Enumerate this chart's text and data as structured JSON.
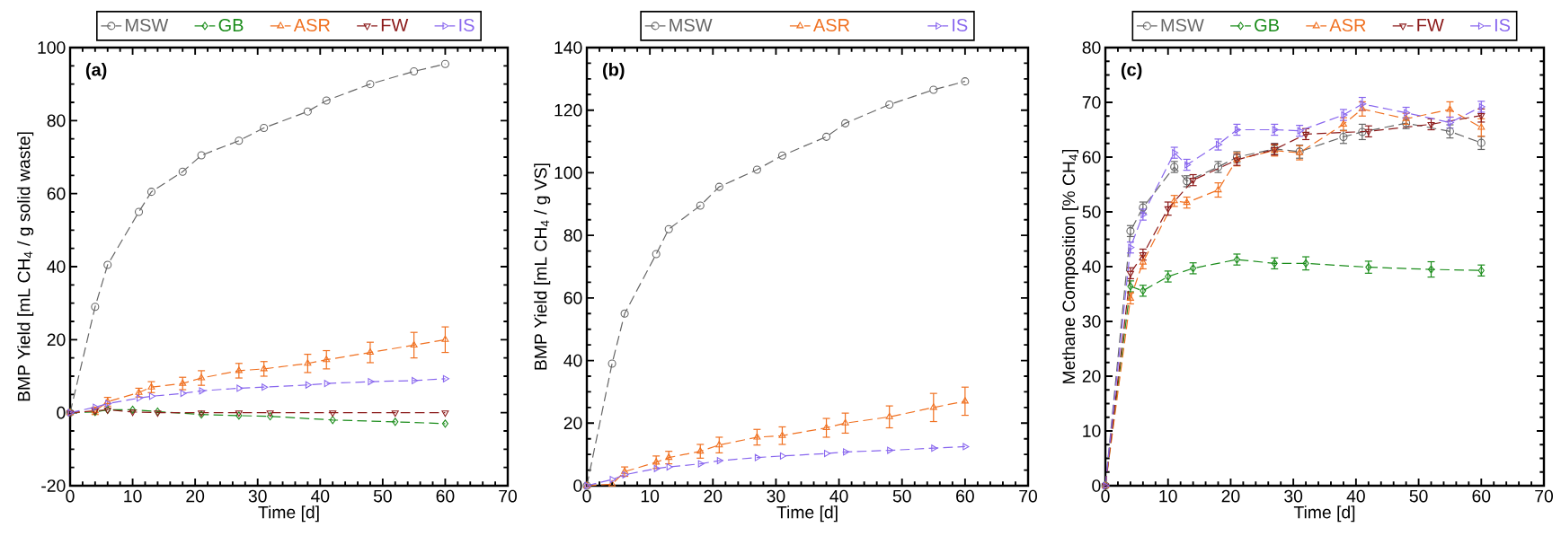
{
  "chart_data": [
    {
      "type": "line",
      "xlabel": "Time [d]",
      "ylabel": "BMP Yield [mL CH$_{4}$ / g solid waste]",
      "annotations": [
        "(a)"
      ],
      "xlim": [
        0,
        70
      ],
      "ylim": [
        -20,
        100
      ],
      "xticks": [
        0,
        10,
        20,
        30,
        40,
        50,
        60,
        70
      ],
      "yticks": [
        -20,
        0,
        20,
        40,
        60,
        80,
        100
      ],
      "legend": "top",
      "line_style": "dashed",
      "series": [
        {
          "name": "MSW",
          "color": "#666666",
          "marker": "circle",
          "x": [
            0,
            4,
            6,
            11,
            13,
            18,
            21,
            27,
            31,
            38,
            41,
            48,
            55,
            60
          ],
          "values": [
            0,
            29,
            40.5,
            55,
            60.5,
            66,
            70.5,
            74.5,
            78,
            82.5,
            85.5,
            90,
            93.5,
            95.5
          ]
        },
        {
          "name": "GB",
          "color": "#1a8c1a",
          "marker": "diamond",
          "x": [
            0,
            4,
            6,
            10,
            14,
            21,
            27,
            32,
            42,
            52,
            60
          ],
          "values": [
            0,
            0.2,
            0.8,
            0.8,
            0.3,
            -0.5,
            -0.8,
            -1,
            -2,
            -2.5,
            -3
          ]
        },
        {
          "name": "ASR",
          "color": "#f07020",
          "marker": "triangle",
          "x": [
            0,
            4,
            6,
            11,
            13,
            18,
            21,
            27,
            31,
            38,
            41,
            48,
            55,
            60
          ],
          "values": [
            0,
            0.5,
            3,
            5.5,
            7,
            8,
            9.5,
            11.5,
            12,
            13.5,
            14.5,
            16.5,
            18.5,
            20
          ],
          "errors": [
            null,
            1,
            1.2,
            1.2,
            1.5,
            1.7,
            2,
            2,
            2,
            2.5,
            2.5,
            2.8,
            3.5,
            3.5
          ]
        },
        {
          "name": "FW",
          "color": "#8b1a1a",
          "marker": "triangle-down",
          "x": [
            0,
            4,
            6,
            10,
            14,
            21,
            27,
            32,
            42,
            52,
            60
          ],
          "values": [
            0,
            0.5,
            0.8,
            0.2,
            0,
            0,
            0,
            0,
            0,
            0,
            0
          ]
        },
        {
          "name": "IS",
          "color": "#8866ee",
          "marker": "triangle-right",
          "x": [
            0,
            4,
            6,
            11,
            13,
            18,
            21,
            27,
            31,
            38,
            41,
            48,
            55,
            60
          ],
          "values": [
            0,
            1.5,
            2.5,
            4,
            4.5,
            5.3,
            6,
            6.7,
            7,
            7.6,
            8,
            8.5,
            8.8,
            9.3
          ]
        }
      ]
    },
    {
      "type": "line",
      "xlabel": "Time [d]",
      "ylabel": "BMP Yield [mL CH$_{4}$ / g VS]",
      "annotations": [
        "(b)"
      ],
      "xlim": [
        0,
        70
      ],
      "ylim": [
        0,
        140
      ],
      "xticks": [
        0,
        10,
        20,
        30,
        40,
        50,
        60,
        70
      ],
      "yticks": [
        0,
        20,
        40,
        60,
        80,
        100,
        120,
        140
      ],
      "legend": "top",
      "line_style": "dashed",
      "series": [
        {
          "name": "MSW",
          "color": "#666666",
          "marker": "circle",
          "x": [
            0,
            4,
            6,
            11,
            13,
            18,
            21,
            27,
            31,
            38,
            41,
            48,
            55,
            60
          ],
          "values": [
            0,
            39,
            55,
            74,
            82,
            89.5,
            95.5,
            101,
            105.5,
            111.5,
            115.8,
            121.8,
            126.5,
            129.2
          ]
        },
        {
          "name": "ASR",
          "color": "#f07020",
          "marker": "triangle",
          "x": [
            0,
            4,
            6,
            11,
            13,
            18,
            21,
            27,
            31,
            38,
            41,
            48,
            55,
            60
          ],
          "values": [
            0,
            0.5,
            4.5,
            7.5,
            9,
            11,
            13,
            15.5,
            16,
            18.5,
            20,
            22,
            25,
            27
          ],
          "errors": [
            null,
            null,
            1.5,
            2,
            2,
            2.2,
            2.5,
            2.5,
            2.8,
            3,
            3.2,
            3.5,
            4.5,
            4.5
          ]
        },
        {
          "name": "IS",
          "color": "#8866ee",
          "marker": "triangle-right",
          "x": [
            0,
            4,
            6,
            11,
            13,
            18,
            21,
            27,
            31,
            38,
            41,
            48,
            55,
            60
          ],
          "values": [
            0,
            2,
            3.5,
            5.5,
            6,
            7,
            8,
            9,
            9.5,
            10.3,
            10.8,
            11.3,
            12,
            12.5
          ]
        }
      ]
    },
    {
      "type": "line",
      "xlabel": "Time [d]",
      "ylabel": "Methane Composition [% CH$_{4}$]",
      "annotations": [
        "(c)"
      ],
      "xlim": [
        0,
        70
      ],
      "ylim": [
        0,
        80
      ],
      "xticks": [
        0,
        10,
        20,
        30,
        40,
        50,
        60,
        70
      ],
      "yticks": [
        0,
        10,
        20,
        30,
        40,
        50,
        60,
        70,
        80
      ],
      "legend": "top",
      "line_style": "dashed",
      "series": [
        {
          "name": "MSW",
          "color": "#666666",
          "marker": "circle",
          "x": [
            0,
            4,
            6,
            11,
            13,
            18,
            21,
            27,
            31,
            38,
            41,
            48,
            55,
            60
          ],
          "values": [
            0,
            46.5,
            50.8,
            58.2,
            55.6,
            58.2,
            60,
            61.5,
            61,
            63.7,
            64.6,
            66.2,
            64.7,
            62.6
          ],
          "errors": [
            null,
            1,
            1,
            1,
            1,
            1,
            1,
            1,
            1.2,
            1.2,
            1.4,
            1,
            1.2,
            1.2
          ]
        },
        {
          "name": "GB",
          "color": "#1a8c1a",
          "marker": "diamond",
          "x": [
            0,
            4,
            6,
            10,
            14,
            21,
            27,
            32,
            42,
            52,
            60
          ],
          "values": [
            0,
            36.4,
            35.6,
            38.2,
            39.7,
            41.3,
            40.6,
            40.6,
            39.9,
            39.5,
            39.3
          ],
          "errors": [
            null,
            1,
            1,
            1,
            1,
            1,
            1,
            1.2,
            1.1,
            1.4,
            1
          ]
        },
        {
          "name": "ASR",
          "color": "#f07020",
          "marker": "triangle",
          "x": [
            0,
            4,
            6,
            11,
            13,
            18,
            21,
            27,
            31,
            38,
            41,
            48,
            55,
            60
          ],
          "values": [
            0,
            34.2,
            40.8,
            52,
            51.7,
            54,
            59.6,
            61.2,
            60.8,
            66,
            68.8,
            67,
            68.7,
            65.4
          ],
          "errors": [
            null,
            1,
            1.2,
            1,
            1,
            1.3,
            1.2,
            1,
            1.3,
            1.2,
            1.3,
            1,
            1.4,
            1.6
          ]
        },
        {
          "name": "FW",
          "color": "#8b1a1a",
          "marker": "triangle-down",
          "x": [
            0,
            4,
            6,
            10,
            14,
            21,
            27,
            32,
            42,
            52,
            60
          ],
          "values": [
            0,
            38.8,
            42.2,
            50.6,
            55.8,
            59.5,
            61.4,
            64.2,
            64.7,
            66,
            67.6
          ],
          "errors": [
            null,
            1,
            1,
            1.2,
            1,
            1,
            1,
            1,
            1,
            1,
            1.2
          ]
        },
        {
          "name": "IS",
          "color": "#8866ee",
          "marker": "triangle-right",
          "x": [
            0,
            4,
            6,
            11,
            13,
            18,
            21,
            27,
            31,
            38,
            41,
            48,
            55,
            60
          ],
          "values": [
            0,
            43.5,
            49.5,
            60.8,
            58.6,
            62.3,
            65,
            65,
            64.8,
            67.7,
            69.7,
            68.1,
            66.3,
            69.2
          ],
          "errors": [
            null,
            1,
            1,
            1,
            1,
            1,
            1,
            1,
            1,
            1,
            1.2,
            1,
            1,
            1
          ]
        }
      ]
    }
  ]
}
